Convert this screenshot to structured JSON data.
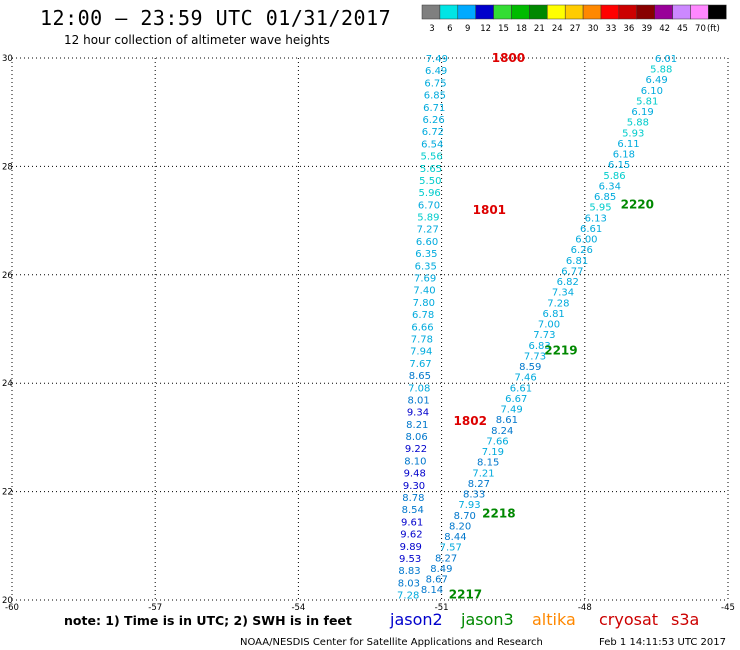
{
  "header": {
    "title": "12:00 – 23:59 UTC 01/31/2017",
    "subtitle": "12 hour collection of altimeter wave heights"
  },
  "legend": {
    "unit": "(ft)",
    "bins": [
      {
        "label": "3",
        "color": "#7f7f7f"
      },
      {
        "label": "6",
        "color": "#00e5e5"
      },
      {
        "label": "9",
        "color": "#00aaff"
      },
      {
        "label": "12",
        "color": "#0000cc"
      },
      {
        "label": "15",
        "color": "#33dd33"
      },
      {
        "label": "18",
        "color": "#00bb00"
      },
      {
        "label": "21",
        "color": "#008800"
      },
      {
        "label": "24",
        "color": "#ffff00"
      },
      {
        "label": "27",
        "color": "#ffcc00"
      },
      {
        "label": "30",
        "color": "#ff8800"
      },
      {
        "label": "33",
        "color": "#ff0000"
      },
      {
        "label": "36",
        "color": "#cc0000"
      },
      {
        "label": "39",
        "color": "#880000"
      },
      {
        "label": "42",
        "color": "#990099"
      },
      {
        "label": "45",
        "color": "#cc88ff"
      },
      {
        "label": "70",
        "color": "#ff88ff"
      },
      {
        "label": "",
        "color": "#000000"
      }
    ]
  },
  "colors": {
    "jason2": "#0000cc",
    "jason3": "#008800",
    "altika": "#ff8800",
    "cryosat": "#cc0000",
    "s3a": "#cc0000",
    "cyan": "#00aadd",
    "bright_cyan": "#00cccc",
    "red_time": "#dd0000",
    "green_time": "#008800"
  },
  "footer": {
    "note": "note: 1) Time is in UTC; 2) SWH is in feet",
    "missions": [
      {
        "name": "jason2",
        "color": "#0000cc"
      },
      {
        "name": "jason3",
        "color": "#008800"
      },
      {
        "name": "altika",
        "color": "#ff8800"
      },
      {
        "name": "cryosat",
        "color": "#cc0000"
      },
      {
        "name": "s3a",
        "color": "#cc0000"
      }
    ],
    "credit": "NOAA/NESDIS Center for Satellite Applications and Research",
    "timestamp": "Feb  1 14:11:53 UTC 2017"
  },
  "chart_data": {
    "type": "scatter",
    "xlim": [
      -60,
      -45
    ],
    "ylim": [
      20,
      30
    ],
    "x_ticks": [
      "-60",
      "-57",
      "-54",
      "-51",
      "-48",
      "-45"
    ],
    "y_ticks": [
      "20",
      "22",
      "24",
      "26",
      "28",
      "30"
    ],
    "grid": true,
    "tracks": [
      {
        "label": "1800",
        "label_color": "#dd0000",
        "color": "#00aadd",
        "lon_start": -51.1,
        "lat_start": 30.0,
        "lon_end": -51.7,
        "lat_end": 20.1,
        "values": [
          "7.49",
          "6.49",
          "6.75",
          "6.85",
          "6.71",
          "6.26",
          "6.72",
          "6.54",
          "5.56",
          "5.65",
          "5.50",
          "5.96",
          "6.70",
          "5.89",
          "7.27",
          "6.60",
          "6.35",
          "6.35",
          "7.69",
          "7.40",
          "7.80",
          "6.78",
          "6.66",
          "7.78",
          "7.94",
          "7.67",
          "8.65",
          "7.08",
          "8.01",
          "9.34",
          "8.21",
          "8.06",
          "9.22",
          "8.10",
          "9.48",
          "9.30",
          "8.78",
          "8.54",
          "9.61",
          "9.62",
          "9.89",
          "9.53",
          "8.83",
          "8.03",
          "7.28"
        ]
      },
      {
        "label": "2217",
        "label_color": "#008800",
        "color": "#00aadd",
        "lon_start": -46.3,
        "lat_start": 30.0,
        "lon_end": -51.2,
        "lat_end": 20.2,
        "values": [
          "6.01",
          "5.88",
          "6.49",
          "6.10",
          "5.81",
          "6.19",
          "5.88",
          "5.93",
          "6.11",
          "6.18",
          "6.15",
          "5.86",
          "6.34",
          "6.85",
          "5.95",
          "6.13",
          "6.61",
          "6.00",
          "6.26",
          "6.81",
          "6.77",
          "6.82",
          "7.34",
          "7.28",
          "6.81",
          "7.00",
          "7.73",
          "6.83",
          "7.73",
          "8.59",
          "7.46",
          "6.61",
          "6.67",
          "7.49",
          "8.61",
          "8.24",
          "7.66",
          "7.19",
          "8.15",
          "7.21",
          "8.27",
          "8.33",
          "7.93",
          "8.70",
          "8.20",
          "8.44",
          "7.57",
          "8.27",
          "8.49",
          "8.67",
          "8.14"
        ]
      }
    ],
    "time_labels": [
      {
        "text": "1800",
        "color": "#dd0000",
        "lon": -49.6,
        "lat": 30.0
      },
      {
        "text": "1801",
        "color": "#dd0000",
        "lon": -50.0,
        "lat": 27.2
      },
      {
        "text": "1802",
        "color": "#dd0000",
        "lon": -50.4,
        "lat": 23.3
      },
      {
        "text": "2220",
        "color": "#008800",
        "lon": -46.9,
        "lat": 27.3
      },
      {
        "text": "2219",
        "color": "#008800",
        "lon": -48.5,
        "lat": 24.6
      },
      {
        "text": "2218",
        "color": "#008800",
        "lon": -49.8,
        "lat": 21.6
      },
      {
        "text": "2217",
        "color": "#008800",
        "lon": -50.5,
        "lat": 20.1
      }
    ]
  }
}
